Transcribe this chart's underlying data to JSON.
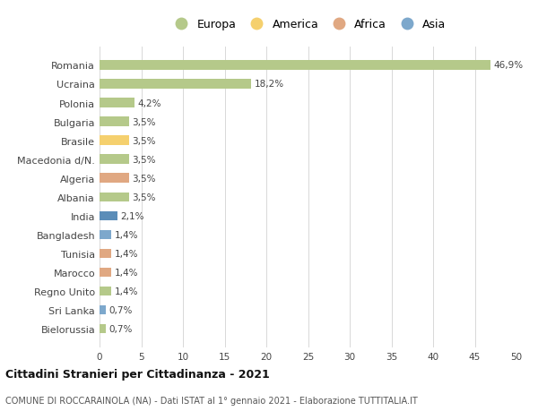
{
  "categories": [
    "Bielorussia",
    "Sri Lanka",
    "Regno Unito",
    "Marocco",
    "Tunisia",
    "Bangladesh",
    "India",
    "Albania",
    "Algeria",
    "Macedonia d/N.",
    "Brasile",
    "Bulgaria",
    "Polonia",
    "Ucraina",
    "Romania"
  ],
  "values": [
    0.7,
    0.7,
    1.4,
    1.4,
    1.4,
    1.4,
    2.1,
    3.5,
    3.5,
    3.5,
    3.5,
    3.5,
    4.2,
    18.2,
    46.9
  ],
  "labels": [
    "0,7%",
    "0,7%",
    "1,4%",
    "1,4%",
    "1,4%",
    "1,4%",
    "2,1%",
    "3,5%",
    "3,5%",
    "3,5%",
    "3,5%",
    "3,5%",
    "4,2%",
    "18,2%",
    "46,9%"
  ],
  "colors": [
    "#b5c98a",
    "#7da8cc",
    "#b5c98a",
    "#e0a882",
    "#e0a882",
    "#7da8cc",
    "#5b8db8",
    "#b5c98a",
    "#e0a882",
    "#b5c98a",
    "#f5d06e",
    "#b5c98a",
    "#b5c98a",
    "#b5c98a",
    "#b5c98a"
  ],
  "legend_labels": [
    "Europa",
    "America",
    "Africa",
    "Asia"
  ],
  "legend_colors": [
    "#b5c98a",
    "#f5d06e",
    "#e0a882",
    "#7da8cc"
  ],
  "xlim": [
    0,
    50
  ],
  "xticks": [
    0,
    5,
    10,
    15,
    20,
    25,
    30,
    35,
    40,
    45,
    50
  ],
  "title1": "Cittadini Stranieri per Cittadinanza - 2021",
  "title2": "COMUNE DI ROCCARAINOLA (NA) - Dati ISTAT al 1° gennaio 2021 - Elaborazione TUTTITALIA.IT",
  "background_color": "#ffffff",
  "bar_height": 0.5,
  "grid_color": "#d8d8d8"
}
